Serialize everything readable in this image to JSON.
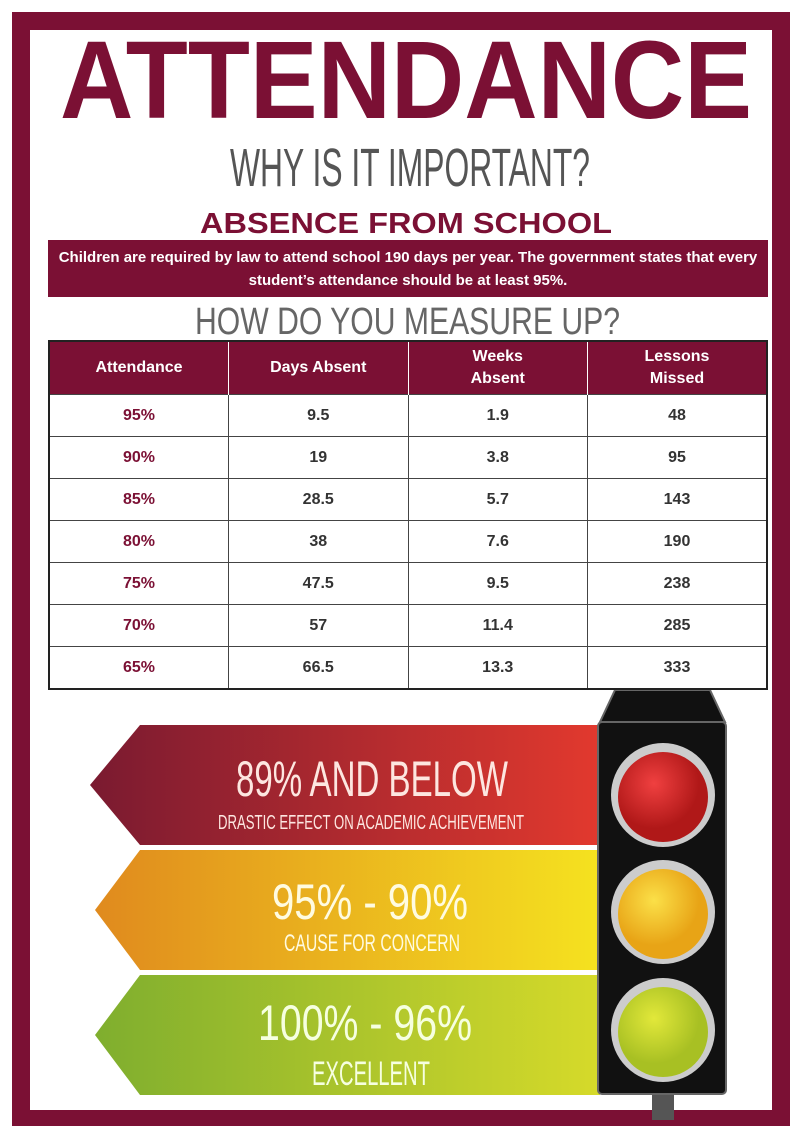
{
  "header": {
    "title": "ATTENDANCE",
    "subtitle": "WHY IS IT IMPORTANT?"
  },
  "section": {
    "heading": "ABSENCE FROM SCHOOL",
    "notice": "Children are required by law to attend school 190 days per year. The government states that every student’s attendance should be at least 95%.",
    "question": "HOW DO YOU MEASURE UP?"
  },
  "table": {
    "header": [
      "Attendance",
      "Days Absent",
      "Weeks Absent",
      "Lessons Missed"
    ],
    "rows": [
      [
        "95%",
        "9.5",
        "1.9",
        "48"
      ],
      [
        "90%",
        "19",
        "3.8",
        "95"
      ],
      [
        "85%",
        "28.5",
        "5.7",
        "143"
      ],
      [
        "80%",
        "38",
        "7.6",
        "190"
      ],
      [
        "75%",
        "47.5",
        "9.5",
        "238"
      ],
      [
        "70%",
        "57",
        "11.4",
        "285"
      ],
      [
        "65%",
        "66.5",
        "13.3",
        "333"
      ]
    ]
  },
  "levels": [
    {
      "range": "89% AND BELOW",
      "meaning": "DRASTIC EFFECT ON ACADEMIC ACHIEVEMENT"
    },
    {
      "range": "95% - 90%",
      "meaning": "CAUSE FOR CONCERN"
    },
    {
      "range": "100% - 96%",
      "meaning": "EXCELLENT"
    }
  ]
}
